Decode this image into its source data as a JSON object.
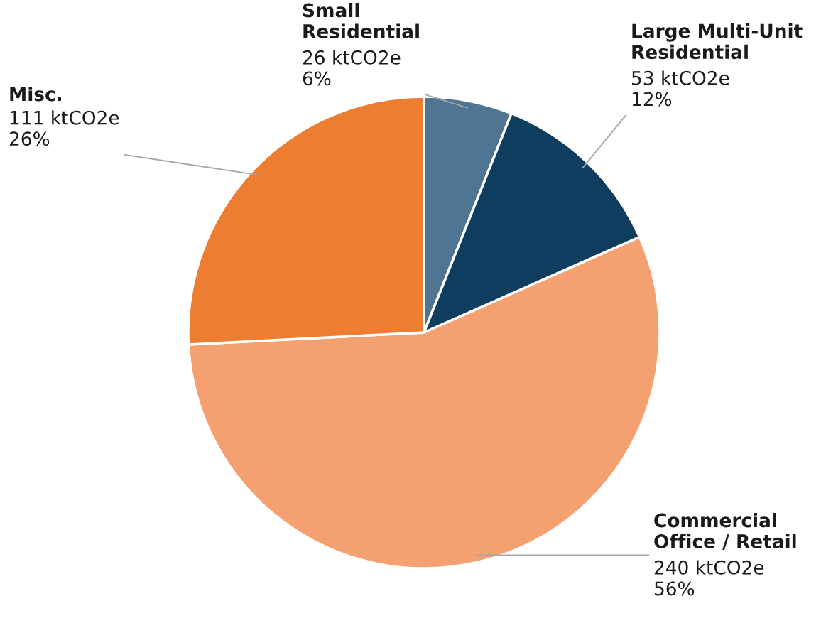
{
  "chart_data": {
    "type": "pie",
    "categories": [
      "Small\nResidential",
      "Large Multi-Unit\nResidential",
      "Commercial\nOffice / Retail",
      "Misc."
    ],
    "values": [
      26,
      53,
      240,
      111
    ],
    "colors": [
      "#4f7592",
      "#0e3d5f",
      "#f4a070",
      "#ed7d31"
    ],
    "value_labels": [
      "26 ktCO2e\n6%",
      "53 ktCO2e\n12%",
      "240 ktCO2e\n56%",
      "111 ktCO2e\n26%"
    ],
    "legend": false
  }
}
